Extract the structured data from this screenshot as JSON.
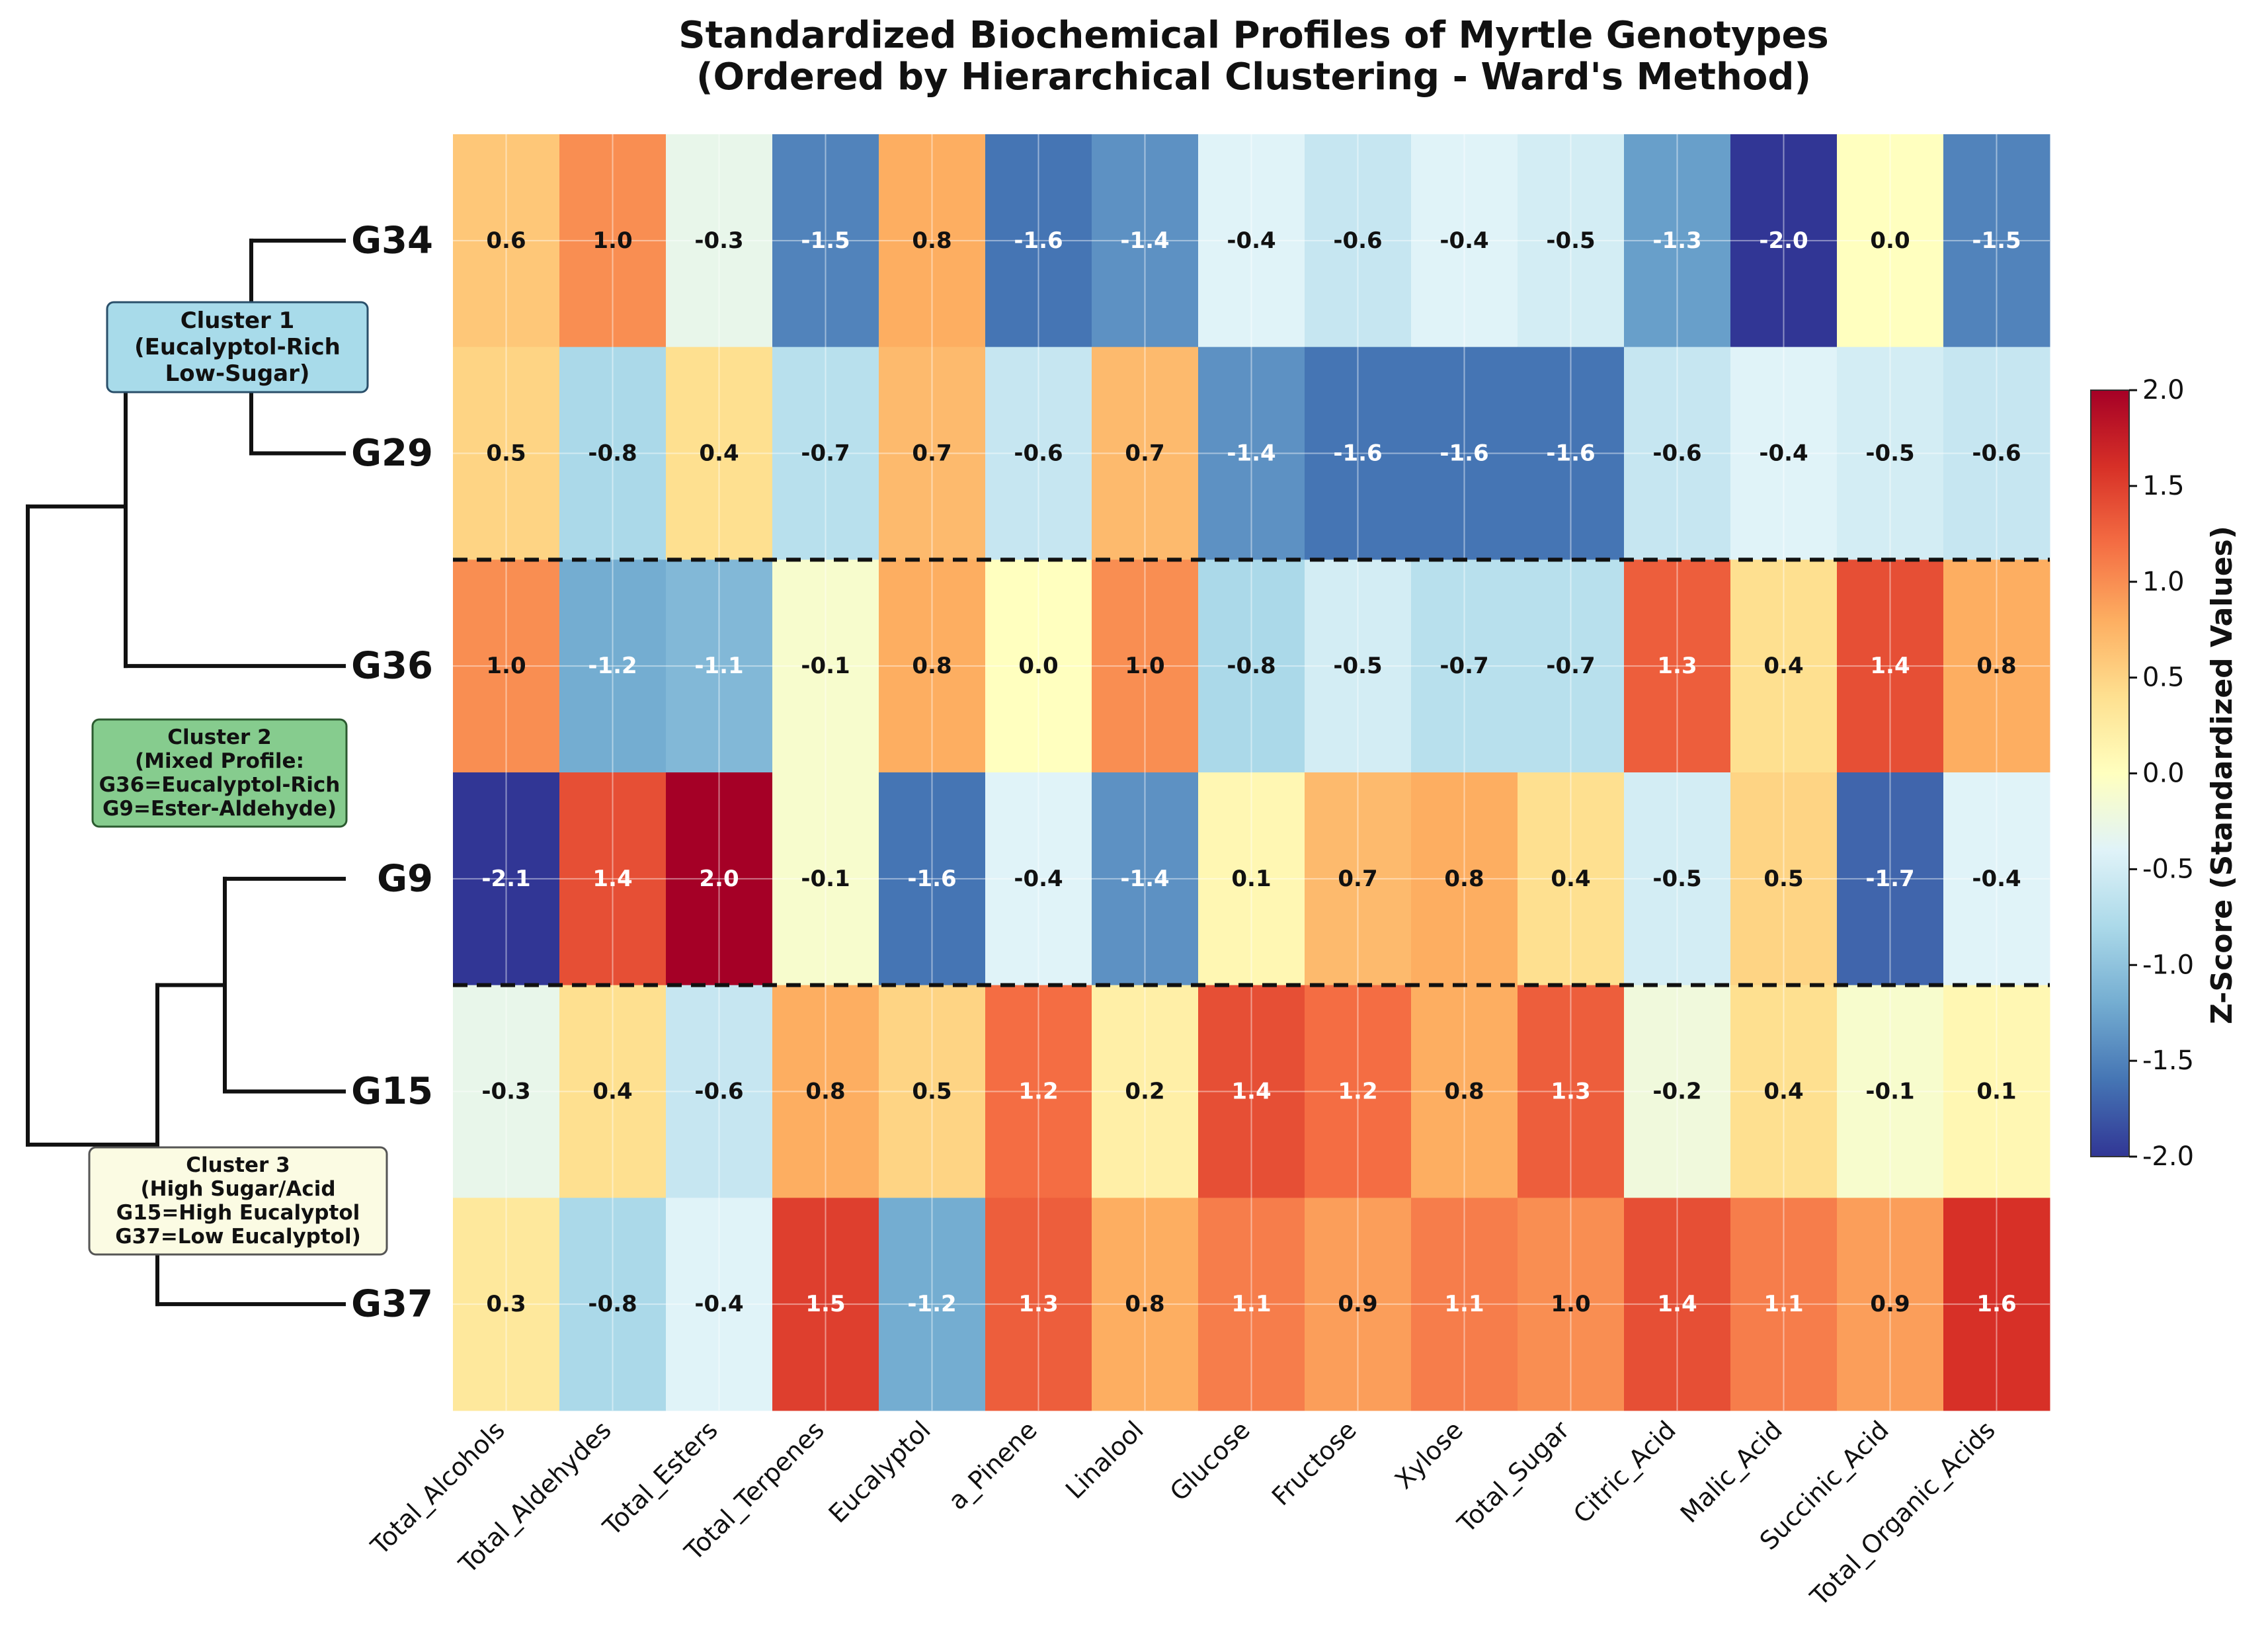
{
  "chart_data": {
    "type": "heatmap",
    "title": "Standardized Biochemical Profiles of Myrtle Genotypes",
    "subtitle": "(Ordered by Hierarchical Clustering - Ward's Method)",
    "rows": [
      "G34",
      "G29",
      "G36",
      "G9",
      "G15",
      "G37"
    ],
    "columns": [
      "Total_Alcohols",
      "Total_Aldehydes",
      "Total_Esters",
      "Total_Terpenes",
      "Eucalyptol",
      "a_Pinene",
      "Linalool",
      "Glucose",
      "Fructose",
      "Xylose",
      "Total_Sugar",
      "Citric_Acid",
      "Malic_Acid",
      "Succinic_Acid",
      "Total_Organic_Acids"
    ],
    "values": [
      [
        0.6,
        1.0,
        -0.3,
        -1.5,
        0.8,
        -1.6,
        -1.4,
        -0.4,
        -0.6,
        -0.4,
        -0.5,
        -1.3,
        -2.0,
        0.0,
        -1.5
      ],
      [
        0.5,
        -0.8,
        0.4,
        -0.7,
        0.7,
        -0.6,
        0.7,
        -1.4,
        -1.6,
        -1.6,
        -1.6,
        -0.6,
        -0.4,
        -0.5,
        -0.6
      ],
      [
        1.0,
        -1.2,
        -1.1,
        -0.1,
        0.8,
        0.0,
        1.0,
        -0.8,
        -0.5,
        -0.7,
        -0.7,
        1.3,
        0.4,
        1.4,
        0.8
      ],
      [
        -2.1,
        1.4,
        2.0,
        -0.1,
        -1.6,
        -0.4,
        -1.4,
        0.1,
        0.7,
        0.8,
        0.4,
        -0.5,
        0.5,
        -1.7,
        -0.4
      ],
      [
        -0.3,
        0.4,
        -0.6,
        0.8,
        0.5,
        1.2,
        0.2,
        1.4,
        1.2,
        0.8,
        1.3,
        -0.2,
        0.4,
        -0.1,
        0.1
      ],
      [
        0.3,
        -0.8,
        -0.4,
        1.5,
        -1.2,
        1.3,
        0.8,
        1.1,
        0.9,
        1.1,
        1.0,
        1.4,
        1.1,
        0.9,
        1.6
      ]
    ],
    "colorbar": {
      "label": "Z-Score (Standardized Values)",
      "range": [
        -2.0,
        2.0
      ],
      "ticks": [
        "2.0",
        "1.5",
        "1.0",
        "0.5",
        "0.0",
        "-0.5",
        "-1.0",
        "-1.5",
        "-2.0"
      ],
      "colormap": "RdYlBu_r"
    },
    "cluster_separators_after_rows": [
      1,
      3
    ],
    "clusters": [
      {
        "lines": [
          "Cluster 1",
          "(Eucalyptol-Rich",
          "Low-Sugar)"
        ],
        "color": "#a8dbea",
        "border": "#2a4f6a"
      },
      {
        "lines": [
          "Cluster 2",
          "(Mixed Profile:",
          "G36=Eucalyptol-Rich",
          "G9=Ester-Aldehyde)"
        ],
        "color": "#86cc8e",
        "border": "#2b5a2f"
      },
      {
        "lines": [
          "Cluster 3",
          "(High Sugar/Acid",
          "G15=High Eucalyptol",
          "G37=Low Eucalyptol)"
        ],
        "color": "#fbfbe3",
        "border": "#555555"
      }
    ],
    "grid": true
  }
}
